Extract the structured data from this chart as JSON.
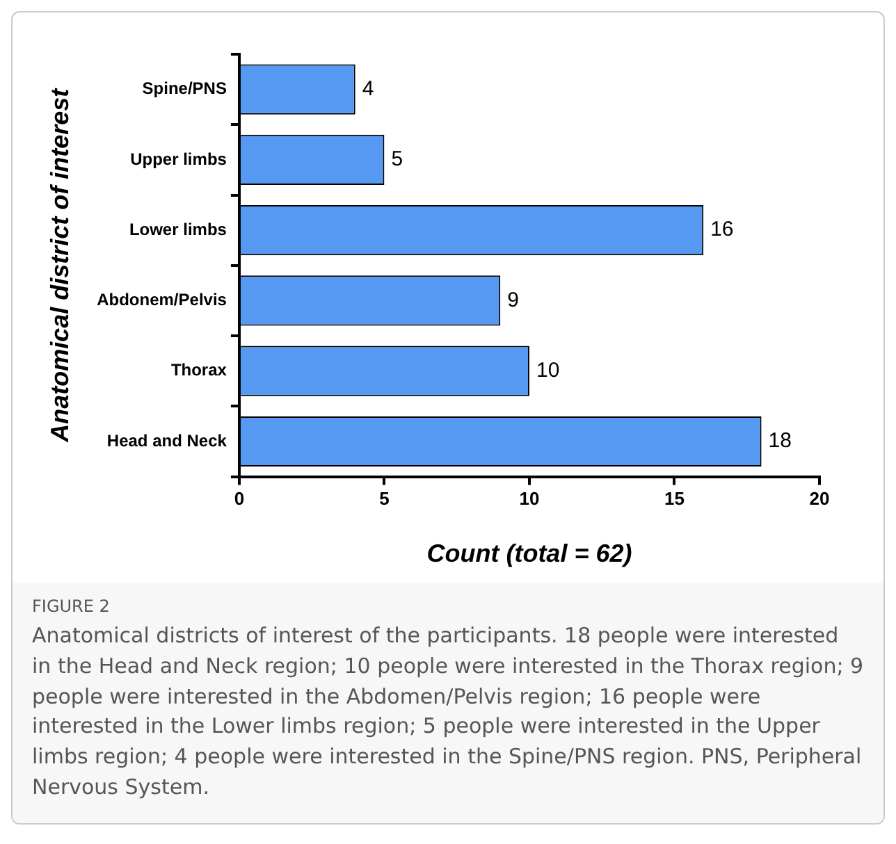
{
  "chart_data": {
    "type": "bar",
    "orientation": "horizontal",
    "categories": [
      "Spine/PNS",
      "Upper limbs",
      "Lower limbs",
      "Abdonem/Pelvis",
      "Thorax",
      "Head and Neck"
    ],
    "values": [
      4,
      5,
      16,
      9,
      10,
      18
    ],
    "color": "#5599f2",
    "xlim": [
      0,
      20
    ],
    "xticks": [
      0,
      5,
      10,
      15,
      20
    ],
    "xlabel": "Count (total = 62)",
    "ylabel": "Anatomical district of interest",
    "data_labels": true,
    "annotations": [
      "FIGURE 2",
      "Anatomical districts of interest of the participants. 18 people were interested in the Head and Neck region; 10 people were interested in the Thorax region; 9 people were interested in the Abdomen/Pelvis region; 16 people were interested in the Lower limbs region; 5 people were interested in the Upper limbs region; 4 people were interested in the Spine/PNS region. PNS, Peripheral Nervous System."
    ]
  }
}
